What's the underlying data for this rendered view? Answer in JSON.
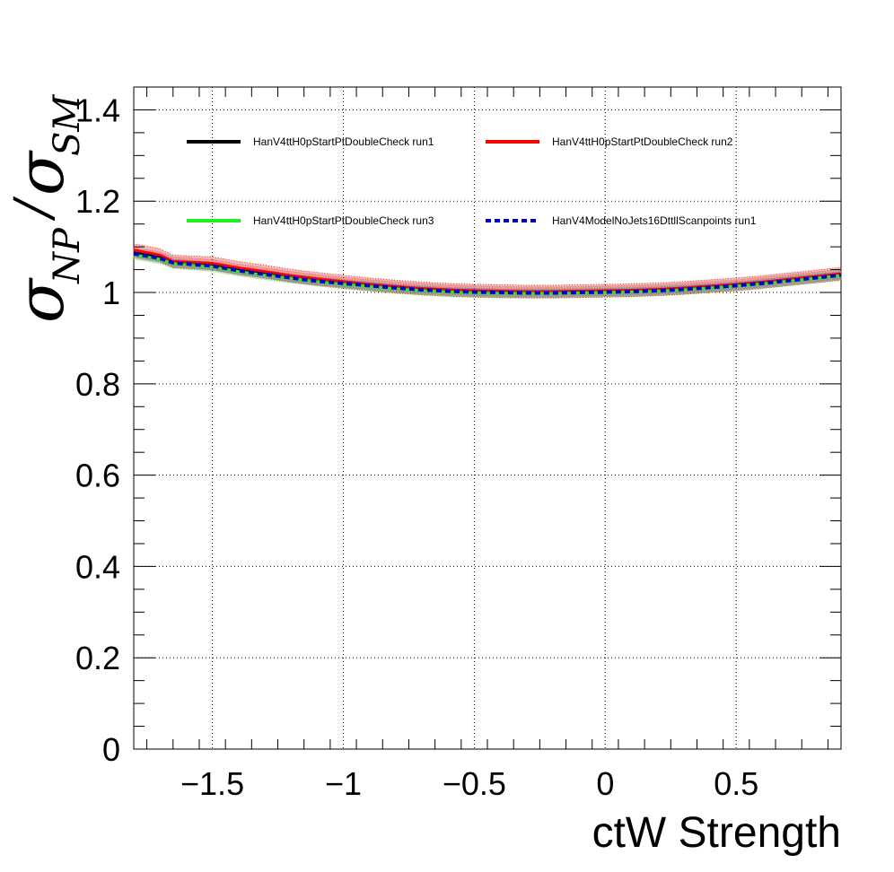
{
  "chart_data": {
    "type": "line",
    "xlabel": "ctW Strength",
    "ylabel": {
      "main": "σ",
      "num_sub": "NP",
      "slash": "/",
      "den_main": "σ",
      "den_sub": "SM"
    },
    "xlim": [
      -1.8,
      0.9
    ],
    "ylim": [
      0,
      1.45
    ],
    "x_ticks": [
      -1.5,
      -1,
      -0.5,
      0,
      0.5
    ],
    "x_tick_labels": [
      "−1.5",
      "−1",
      "−0.5",
      "0",
      "0.5"
    ],
    "y_ticks": [
      0,
      0.2,
      0.4,
      0.6,
      0.8,
      1,
      1.2,
      1.4
    ],
    "y_tick_labels": [
      "0",
      "0.2",
      "0.4",
      "0.6",
      "0.8",
      "1",
      "1.2",
      "1.4"
    ],
    "grid": true,
    "legend_position": "top",
    "x": [
      -1.8,
      -1.7,
      -1.65,
      -1.5,
      -1.4,
      -1.3,
      -1.2,
      -1.1,
      -1.0,
      -0.9,
      -0.8,
      -0.7,
      -0.6,
      -0.5,
      -0.4,
      -0.3,
      -0.2,
      -0.1,
      0.0,
      0.1,
      0.2,
      0.3,
      0.4,
      0.5,
      0.6,
      0.7,
      0.8,
      0.9
    ],
    "series": [
      {
        "name": "HanV4ttH0pStartPtDoubleCheck run1",
        "color": "#000000",
        "style": "solid",
        "values": [
          1.087,
          1.077,
          1.066,
          1.06,
          1.05,
          1.042,
          1.034,
          1.027,
          1.021,
          1.016,
          1.011,
          1.007,
          1.004,
          1.002,
          1.001,
          1.0,
          1.0,
          1.001,
          1.002,
          1.003,
          1.005,
          1.008,
          1.012,
          1.016,
          1.021,
          1.027,
          1.033,
          1.039
        ]
      },
      {
        "name": "HanV4ttH0pStartPtDoubleCheck run2",
        "color": "#ff0000",
        "style": "solid",
        "values": [
          1.093,
          1.082,
          1.068,
          1.064,
          1.054,
          1.046,
          1.037,
          1.03,
          1.024,
          1.018,
          1.013,
          1.009,
          1.006,
          1.004,
          1.003,
          1.002,
          1.002,
          1.003,
          1.004,
          1.005,
          1.007,
          1.01,
          1.014,
          1.018,
          1.023,
          1.029,
          1.035,
          1.041
        ]
      },
      {
        "name": "HanV4ttH0pStartPtDoubleCheck run3",
        "color": "#22ee22",
        "style": "solid",
        "values": [
          1.083,
          1.073,
          1.063,
          1.056,
          1.046,
          1.038,
          1.031,
          1.024,
          1.018,
          1.013,
          1.008,
          1.004,
          1.001,
          0.999,
          0.998,
          0.998,
          0.998,
          0.999,
          1.0,
          1.001,
          1.003,
          1.006,
          1.01,
          1.014,
          1.019,
          1.025,
          1.031,
          1.037
        ]
      },
      {
        "name": "HanV4ModelNoJets16DttllScanpoints run1",
        "color": "#0000cc",
        "style": "dashed",
        "values": [
          1.085,
          1.075,
          1.065,
          1.058,
          1.048,
          1.04,
          1.032,
          1.025,
          1.02,
          1.015,
          1.01,
          1.006,
          1.003,
          1.001,
          1.0,
          0.999,
          0.999,
          1.0,
          1.001,
          1.002,
          1.004,
          1.007,
          1.011,
          1.015,
          1.02,
          1.026,
          1.032,
          1.038
        ]
      }
    ]
  }
}
